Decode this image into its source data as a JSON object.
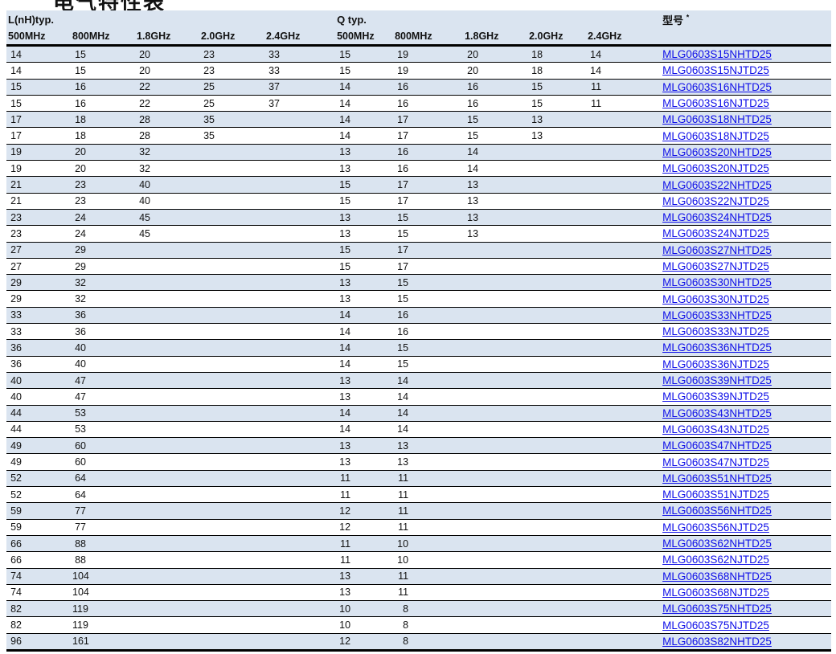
{
  "page": {
    "title_fragment": "电气特性表"
  },
  "table": {
    "group_headers": {
      "l": "L(nH)typ.",
      "q": "Q typ.",
      "part": "型号",
      "part_note_mark": "*"
    },
    "freq_headers": [
      "500MHz",
      "800MHz",
      "1.8GHz",
      "2.0GHz",
      "2.4GHz"
    ],
    "rows": [
      {
        "l": [
          "14",
          "15",
          "20",
          "23",
          "33"
        ],
        "q": [
          "15",
          "19",
          "20",
          "18",
          "14"
        ],
        "part": "MLG0603S15NHTD25"
      },
      {
        "l": [
          "14",
          "15",
          "20",
          "23",
          "33"
        ],
        "q": [
          "15",
          "19",
          "20",
          "18",
          "14"
        ],
        "part": "MLG0603S15NJTD25"
      },
      {
        "l": [
          "15",
          "16",
          "22",
          "25",
          "37"
        ],
        "q": [
          "14",
          "16",
          "16",
          "15",
          "11"
        ],
        "part": "MLG0603S16NHTD25"
      },
      {
        "l": [
          "15",
          "16",
          "22",
          "25",
          "37"
        ],
        "q": [
          "14",
          "16",
          "16",
          "15",
          "11"
        ],
        "part": "MLG0603S16NJTD25"
      },
      {
        "l": [
          "17",
          "18",
          "28",
          "35",
          ""
        ],
        "q": [
          "14",
          "17",
          "15",
          "13",
          ""
        ],
        "part": "MLG0603S18NHTD25"
      },
      {
        "l": [
          "17",
          "18",
          "28",
          "35",
          ""
        ],
        "q": [
          "14",
          "17",
          "15",
          "13",
          ""
        ],
        "part": "MLG0603S18NJTD25"
      },
      {
        "l": [
          "19",
          "20",
          "32",
          "",
          ""
        ],
        "q": [
          "13",
          "16",
          "14",
          "",
          ""
        ],
        "part": "MLG0603S20NHTD25"
      },
      {
        "l": [
          "19",
          "20",
          "32",
          "",
          ""
        ],
        "q": [
          "13",
          "16",
          "14",
          "",
          ""
        ],
        "part": "MLG0603S20NJTD25"
      },
      {
        "l": [
          "21",
          "23",
          "40",
          "",
          ""
        ],
        "q": [
          "15",
          "17",
          "13",
          "",
          ""
        ],
        "part": "MLG0603S22NHTD25"
      },
      {
        "l": [
          "21",
          "23",
          "40",
          "",
          ""
        ],
        "q": [
          "15",
          "17",
          "13",
          "",
          ""
        ],
        "part": "MLG0603S22NJTD25"
      },
      {
        "l": [
          "23",
          "24",
          "45",
          "",
          ""
        ],
        "q": [
          "13",
          "15",
          "13",
          "",
          ""
        ],
        "part": "MLG0603S24NHTD25"
      },
      {
        "l": [
          "23",
          "24",
          "45",
          "",
          ""
        ],
        "q": [
          "13",
          "15",
          "13",
          "",
          ""
        ],
        "part": "MLG0603S24NJTD25"
      },
      {
        "l": [
          "27",
          "29",
          "",
          "",
          ""
        ],
        "q": [
          "15",
          "17",
          "",
          "",
          ""
        ],
        "part": "MLG0603S27NHTD25"
      },
      {
        "l": [
          "27",
          "29",
          "",
          "",
          ""
        ],
        "q": [
          "15",
          "17",
          "",
          "",
          ""
        ],
        "part": "MLG0603S27NJTD25"
      },
      {
        "l": [
          "29",
          "32",
          "",
          "",
          ""
        ],
        "q": [
          "13",
          "15",
          "",
          "",
          ""
        ],
        "part": "MLG0603S30NHTD25"
      },
      {
        "l": [
          "29",
          "32",
          "",
          "",
          ""
        ],
        "q": [
          "13",
          "15",
          "",
          "",
          ""
        ],
        "part": "MLG0603S30NJTD25"
      },
      {
        "l": [
          "33",
          "36",
          "",
          "",
          ""
        ],
        "q": [
          "14",
          "16",
          "",
          "",
          ""
        ],
        "part": "MLG0603S33NHTD25"
      },
      {
        "l": [
          "33",
          "36",
          "",
          "",
          ""
        ],
        "q": [
          "14",
          "16",
          "",
          "",
          ""
        ],
        "part": "MLG0603S33NJTD25"
      },
      {
        "l": [
          "36",
          "40",
          "",
          "",
          ""
        ],
        "q": [
          "14",
          "15",
          "",
          "",
          ""
        ],
        "part": "MLG0603S36NHTD25"
      },
      {
        "l": [
          "36",
          "40",
          "",
          "",
          ""
        ],
        "q": [
          "14",
          "15",
          "",
          "",
          ""
        ],
        "part": "MLG0603S36NJTD25"
      },
      {
        "l": [
          "40",
          "47",
          "",
          "",
          ""
        ],
        "q": [
          "13",
          "14",
          "",
          "",
          ""
        ],
        "part": "MLG0603S39NHTD25"
      },
      {
        "l": [
          "40",
          "47",
          "",
          "",
          ""
        ],
        "q": [
          "13",
          "14",
          "",
          "",
          ""
        ],
        "part": "MLG0603S39NJTD25"
      },
      {
        "l": [
          "44",
          "53",
          "",
          "",
          ""
        ],
        "q": [
          "14",
          "14",
          "",
          "",
          ""
        ],
        "part": "MLG0603S43NHTD25"
      },
      {
        "l": [
          "44",
          "53",
          "",
          "",
          ""
        ],
        "q": [
          "14",
          "14",
          "",
          "",
          ""
        ],
        "part": "MLG0603S43NJTD25"
      },
      {
        "l": [
          "49",
          "60",
          "",
          "",
          ""
        ],
        "q": [
          "13",
          "13",
          "",
          "",
          ""
        ],
        "part": "MLG0603S47NHTD25"
      },
      {
        "l": [
          "49",
          "60",
          "",
          "",
          ""
        ],
        "q": [
          "13",
          "13",
          "",
          "",
          ""
        ],
        "part": "MLG0603S47NJTD25"
      },
      {
        "l": [
          "52",
          "64",
          "",
          "",
          ""
        ],
        "q": [
          "11",
          "11",
          "",
          "",
          ""
        ],
        "part": "MLG0603S51NHTD25"
      },
      {
        "l": [
          "52",
          "64",
          "",
          "",
          ""
        ],
        "q": [
          "11",
          "11",
          "",
          "",
          ""
        ],
        "part": "MLG0603S51NJTD25"
      },
      {
        "l": [
          "59",
          "77",
          "",
          "",
          ""
        ],
        "q": [
          "12",
          "11",
          "",
          "",
          ""
        ],
        "part": "MLG0603S56NHTD25"
      },
      {
        "l": [
          "59",
          "77",
          "",
          "",
          ""
        ],
        "q": [
          "12",
          "11",
          "",
          "",
          ""
        ],
        "part": "MLG0603S56NJTD25"
      },
      {
        "l": [
          "66",
          "88",
          "",
          "",
          ""
        ],
        "q": [
          "11",
          "10",
          "",
          "",
          ""
        ],
        "part": "MLG0603S62NHTD25"
      },
      {
        "l": [
          "66",
          "88",
          "",
          "",
          ""
        ],
        "q": [
          "11",
          "10",
          "",
          "",
          ""
        ],
        "part": "MLG0603S62NJTD25"
      },
      {
        "l": [
          "74",
          "104",
          "",
          "",
          ""
        ],
        "q": [
          "13",
          "11",
          "",
          "",
          ""
        ],
        "part": "MLG0603S68NHTD25"
      },
      {
        "l": [
          "74",
          "104",
          "",
          "",
          ""
        ],
        "q": [
          "13",
          "11",
          "",
          "",
          ""
        ],
        "part": "MLG0603S68NJTD25"
      },
      {
        "l": [
          "82",
          "119",
          "",
          "",
          ""
        ],
        "q": [
          "10",
          "8",
          "",
          "",
          ""
        ],
        "part": "MLG0603S75NHTD25"
      },
      {
        "l": [
          "82",
          "119",
          "",
          "",
          ""
        ],
        "q": [
          "10",
          "8",
          "",
          "",
          ""
        ],
        "part": "MLG0603S75NJTD25"
      },
      {
        "l": [
          "96",
          "161",
          "",
          "",
          ""
        ],
        "q": [
          "12",
          "8",
          "",
          "",
          ""
        ],
        "part": "MLG0603S82NHTD25"
      }
    ]
  },
  "colors": {
    "band_blue": "#dae4f0",
    "link_blue": "#0f0fe8",
    "text": "#111111",
    "border": "#000000"
  }
}
